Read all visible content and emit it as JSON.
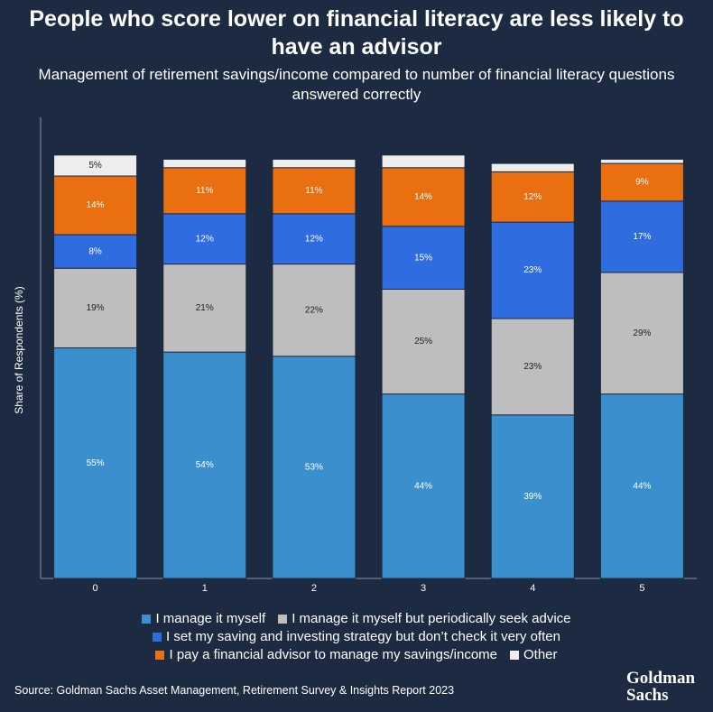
{
  "chart_data": {
    "type": "stacked_bar",
    "title": "People who score lower on financial literacy are less likely to have an advisor",
    "subtitle": "Management of retirement savings/income compared to number of financial literacy questions answered correctly",
    "y_label": "Share of Respondents (%)",
    "source": "Source: Goldman Sachs Asset Management, Retirement Survey & Insights Report 2023",
    "logo": "Goldman Sachs",
    "categories": [
      "0",
      "1",
      "2",
      "3",
      "4",
      "5"
    ],
    "ylim": [
      0,
      110
    ],
    "series": [
      {
        "name": "I manage it myself",
        "color": "#3b8fcc",
        "values": [
          55,
          54,
          53,
          44,
          39,
          44
        ],
        "value_labels": [
          "55%",
          "54%",
          "53%",
          "44%",
          "39%",
          "44%"
        ]
      },
      {
        "name": "I manage it myself but periodically seek advice",
        "color": "#bebebf",
        "values": [
          19,
          21,
          22,
          25,
          23,
          29
        ],
        "value_labels": [
          "19%",
          "21%",
          "22%",
          "25%",
          "23%",
          "29%"
        ]
      },
      {
        "name": "I set my saving and investing strategy but don’t check it very often",
        "color": "#2f6ce0",
        "values": [
          8,
          12,
          12,
          15,
          23,
          17
        ],
        "value_labels": [
          "8%",
          "12%",
          "12%",
          "15%",
          "23%",
          "17%"
        ]
      },
      {
        "name": "I pay a financial advisor to manage my savings/income",
        "color": "#ea6f10",
        "values": [
          14,
          11,
          11,
          14,
          12,
          9
        ],
        "value_labels": [
          "14%",
          "11%",
          "11%",
          "14%",
          "12%",
          "9%"
        ]
      },
      {
        "name": "Other",
        "color": "#ededee",
        "values": [
          5,
          2,
          2,
          3,
          2,
          1
        ],
        "value_labels": [
          "5%",
          null,
          null,
          null,
          null,
          null
        ]
      }
    ]
  }
}
